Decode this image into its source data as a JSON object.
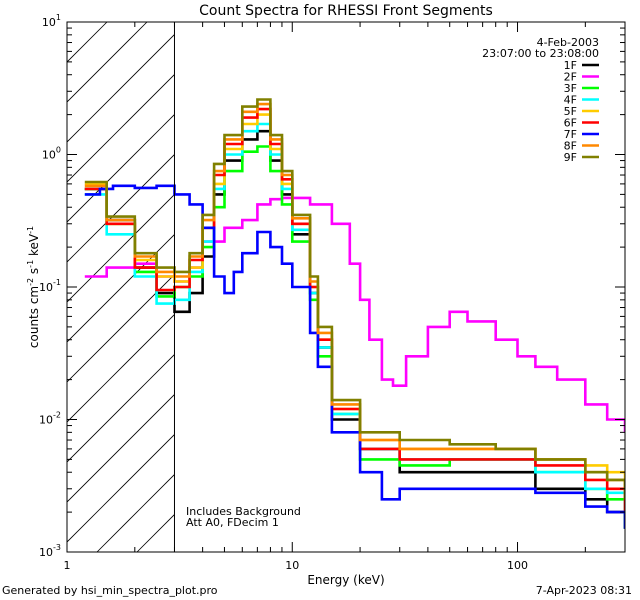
{
  "chart_data": {
    "type": "line",
    "title": "Count Spectra for RHESSI Front Segments",
    "xlabel": "Energy (keV)",
    "ylabel_parts": [
      "counts cm",
      "-2",
      " s",
      "-1",
      " keV",
      "-1"
    ],
    "x_scale": "log",
    "y_scale": "log",
    "xlim": [
      1,
      300
    ],
    "ylim": [
      0.001,
      10
    ],
    "x_ticks": [
      {
        "value": 1,
        "label": "1"
      },
      {
        "value": 10,
        "label": "10"
      },
      {
        "value": 100,
        "label": "100"
      }
    ],
    "y_ticks": [
      {
        "value": 0.001,
        "base": "10",
        "exp": "-3"
      },
      {
        "value": 0.01,
        "base": "10",
        "exp": "-2"
      },
      {
        "value": 0.1,
        "base": "10",
        "exp": "-1"
      },
      {
        "value": 1,
        "base": "10",
        "exp": "0"
      },
      {
        "value": 10,
        "base": "10",
        "exp": "1"
      }
    ],
    "shaded_region": {
      "x_from": 1,
      "x_to": 3
    },
    "legend_header": [
      "4-Feb-2003",
      "23:07:00 to 23:08:00"
    ],
    "annotations": [
      "Includes Background",
      "Att A0, FDecim 1"
    ],
    "footer_left": "Generated by hsi_min_spectra_plot.pro",
    "footer_right": "7-Apr-2023 08:31",
    "series": [
      {
        "name": "1F",
        "color": "#000000",
        "points": [
          [
            1.2,
            0.55
          ],
          [
            1.5,
            0.32
          ],
          [
            2,
            0.14
          ],
          [
            2.5,
            0.09
          ],
          [
            3,
            0.065
          ],
          [
            3.5,
            0.09
          ],
          [
            4,
            0.17
          ],
          [
            4.5,
            0.5
          ],
          [
            5,
            0.9
          ],
          [
            6,
            1.3
          ],
          [
            7,
            1.5
          ],
          [
            8,
            0.9
          ],
          [
            9,
            0.5
          ],
          [
            10,
            0.25
          ],
          [
            12,
            0.09
          ],
          [
            13,
            0.035
          ],
          [
            15,
            0.01
          ],
          [
            20,
            0.006
          ],
          [
            30,
            0.004
          ],
          [
            50,
            0.004
          ],
          [
            80,
            0.004
          ],
          [
            120,
            0.003
          ],
          [
            200,
            0.0025
          ],
          [
            250,
            0.002
          ],
          [
            300,
            0.0015
          ]
        ]
      },
      {
        "name": "2F",
        "color": "#ff00ff",
        "points": [
          [
            1.2,
            0.12
          ],
          [
            1.5,
            0.14
          ],
          [
            2,
            0.15
          ],
          [
            2.5,
            0.12
          ],
          [
            3,
            0.11
          ],
          [
            3.5,
            0.14
          ],
          [
            4,
            0.22
          ],
          [
            5,
            0.28
          ],
          [
            6,
            0.32
          ],
          [
            7,
            0.42
          ],
          [
            8,
            0.46
          ],
          [
            9,
            0.47
          ],
          [
            10,
            0.47
          ],
          [
            12,
            0.42
          ],
          [
            15,
            0.3
          ],
          [
            18,
            0.15
          ],
          [
            20,
            0.08
          ],
          [
            22,
            0.04
          ],
          [
            25,
            0.02
          ],
          [
            28,
            0.018
          ],
          [
            32,
            0.03
          ],
          [
            40,
            0.05
          ],
          [
            50,
            0.065
          ],
          [
            60,
            0.055
          ],
          [
            80,
            0.04
          ],
          [
            100,
            0.03
          ],
          [
            120,
            0.025
          ],
          [
            150,
            0.02
          ],
          [
            200,
            0.013
          ],
          [
            250,
            0.01
          ],
          [
            300,
            0.008
          ]
        ]
      },
      {
        "name": "3F",
        "color": "#00ff00",
        "points": [
          [
            1.2,
            0.55
          ],
          [
            1.5,
            0.3
          ],
          [
            2,
            0.13
          ],
          [
            2.5,
            0.085
          ],
          [
            3,
            0.1
          ],
          [
            3.5,
            0.12
          ],
          [
            4,
            0.2
          ],
          [
            4.5,
            0.4
          ],
          [
            5,
            0.75
          ],
          [
            6,
            1.05
          ],
          [
            7,
            1.15
          ],
          [
            8,
            0.75
          ],
          [
            9,
            0.42
          ],
          [
            10,
            0.22
          ],
          [
            12,
            0.08
          ],
          [
            13,
            0.03
          ],
          [
            15,
            0.011
          ],
          [
            20,
            0.005
          ],
          [
            30,
            0.0045
          ],
          [
            50,
            0.005
          ],
          [
            80,
            0.005
          ],
          [
            120,
            0.004
          ],
          [
            200,
            0.003
          ],
          [
            250,
            0.0025
          ],
          [
            300,
            0.0015
          ]
        ]
      },
      {
        "name": "4F",
        "color": "#00ffff",
        "points": [
          [
            1.2,
            0.5
          ],
          [
            1.5,
            0.25
          ],
          [
            2,
            0.12
          ],
          [
            2.5,
            0.075
          ],
          [
            3,
            0.08
          ],
          [
            3.5,
            0.13
          ],
          [
            4,
            0.22
          ],
          [
            4.5,
            0.55
          ],
          [
            5,
            1.0
          ],
          [
            6,
            1.5
          ],
          [
            7,
            1.7
          ],
          [
            8,
            1.0
          ],
          [
            9,
            0.55
          ],
          [
            10,
            0.27
          ],
          [
            12,
            0.09
          ],
          [
            13,
            0.035
          ],
          [
            15,
            0.011
          ],
          [
            20,
            0.006
          ],
          [
            30,
            0.005
          ],
          [
            50,
            0.005
          ],
          [
            80,
            0.005
          ],
          [
            120,
            0.004
          ],
          [
            200,
            0.003
          ],
          [
            250,
            0.0028
          ],
          [
            300,
            0.002
          ]
        ]
      },
      {
        "name": "5F",
        "color": "#ffcc00",
        "points": [
          [
            1.2,
            0.6
          ],
          [
            1.5,
            0.3
          ],
          [
            2,
            0.16
          ],
          [
            2.5,
            0.12
          ],
          [
            3,
            0.11
          ],
          [
            3.5,
            0.14
          ],
          [
            4,
            0.28
          ],
          [
            4.5,
            0.6
          ],
          [
            5,
            1.1
          ],
          [
            6,
            1.7
          ],
          [
            7,
            2.0
          ],
          [
            8,
            1.1
          ],
          [
            9,
            0.6
          ],
          [
            10,
            0.3
          ],
          [
            12,
            0.1
          ],
          [
            13,
            0.04
          ],
          [
            15,
            0.012
          ],
          [
            20,
            0.007
          ],
          [
            30,
            0.006
          ],
          [
            50,
            0.006
          ],
          [
            80,
            0.006
          ],
          [
            120,
            0.005
          ],
          [
            200,
            0.0045
          ],
          [
            250,
            0.004
          ],
          [
            300,
            0.003
          ]
        ]
      },
      {
        "name": "6F",
        "color": "#ff0000",
        "points": [
          [
            1.2,
            0.55
          ],
          [
            1.5,
            0.3
          ],
          [
            2,
            0.14
          ],
          [
            2.5,
            0.095
          ],
          [
            3,
            0.1
          ],
          [
            3.5,
            0.16
          ],
          [
            4,
            0.28
          ],
          [
            4.5,
            0.7
          ],
          [
            5,
            1.2
          ],
          [
            6,
            1.9
          ],
          [
            7,
            2.2
          ],
          [
            8,
            1.2
          ],
          [
            9,
            0.65
          ],
          [
            10,
            0.3
          ],
          [
            12,
            0.1
          ],
          [
            13,
            0.04
          ],
          [
            15,
            0.012
          ],
          [
            20,
            0.006
          ],
          [
            30,
            0.005
          ],
          [
            50,
            0.005
          ],
          [
            80,
            0.005
          ],
          [
            120,
            0.0045
          ],
          [
            200,
            0.0035
          ],
          [
            250,
            0.003
          ],
          [
            300,
            0.002
          ]
        ]
      },
      {
        "name": "7F",
        "color": "#0000ff",
        "points": [
          [
            1.2,
            0.5
          ],
          [
            1.4,
            0.55
          ],
          [
            1.6,
            0.58
          ],
          [
            2,
            0.56
          ],
          [
            2.5,
            0.58
          ],
          [
            3,
            0.5
          ],
          [
            3.5,
            0.42
          ],
          [
            4,
            0.28
          ],
          [
            4.5,
            0.12
          ],
          [
            5,
            0.09
          ],
          [
            5.5,
            0.13
          ],
          [
            6,
            0.18
          ],
          [
            7,
            0.26
          ],
          [
            8,
            0.2
          ],
          [
            9,
            0.15
          ],
          [
            10,
            0.1
          ],
          [
            12,
            0.045
          ],
          [
            13,
            0.025
          ],
          [
            15,
            0.008
          ],
          [
            20,
            0.004
          ],
          [
            25,
            0.0025
          ],
          [
            30,
            0.003
          ],
          [
            50,
            0.003
          ],
          [
            80,
            0.003
          ],
          [
            120,
            0.0028
          ],
          [
            200,
            0.0022
          ],
          [
            250,
            0.002
          ],
          [
            300,
            0.0015
          ]
        ]
      },
      {
        "name": "8F",
        "color": "#ff8800",
        "points": [
          [
            1.2,
            0.58
          ],
          [
            1.5,
            0.32
          ],
          [
            2,
            0.17
          ],
          [
            2.5,
            0.13
          ],
          [
            3,
            0.12
          ],
          [
            3.5,
            0.17
          ],
          [
            4,
            0.32
          ],
          [
            4.5,
            0.75
          ],
          [
            5,
            1.3
          ],
          [
            6,
            2.1
          ],
          [
            7,
            2.4
          ],
          [
            8,
            1.3
          ],
          [
            9,
            0.7
          ],
          [
            10,
            0.33
          ],
          [
            12,
            0.11
          ],
          [
            13,
            0.045
          ],
          [
            15,
            0.013
          ],
          [
            20,
            0.007
          ],
          [
            30,
            0.006
          ],
          [
            50,
            0.006
          ],
          [
            80,
            0.006
          ],
          [
            120,
            0.005
          ],
          [
            200,
            0.004
          ],
          [
            250,
            0.0035
          ],
          [
            300,
            0.0025
          ]
        ]
      },
      {
        "name": "9F",
        "color": "#808000",
        "points": [
          [
            1.2,
            0.62
          ],
          [
            1.5,
            0.34
          ],
          [
            2,
            0.18
          ],
          [
            2.5,
            0.14
          ],
          [
            3,
            0.13
          ],
          [
            3.5,
            0.18
          ],
          [
            4,
            0.35
          ],
          [
            4.5,
            0.85
          ],
          [
            5,
            1.4
          ],
          [
            6,
            2.3
          ],
          [
            7,
            2.6
          ],
          [
            8,
            1.4
          ],
          [
            9,
            0.75
          ],
          [
            10,
            0.35
          ],
          [
            12,
            0.12
          ],
          [
            13,
            0.05
          ],
          [
            15,
            0.014
          ],
          [
            20,
            0.008
          ],
          [
            30,
            0.007
          ],
          [
            50,
            0.0065
          ],
          [
            80,
            0.006
          ],
          [
            120,
            0.005
          ],
          [
            200,
            0.004
          ],
          [
            250,
            0.0035
          ],
          [
            300,
            0.0025
          ]
        ]
      }
    ]
  }
}
